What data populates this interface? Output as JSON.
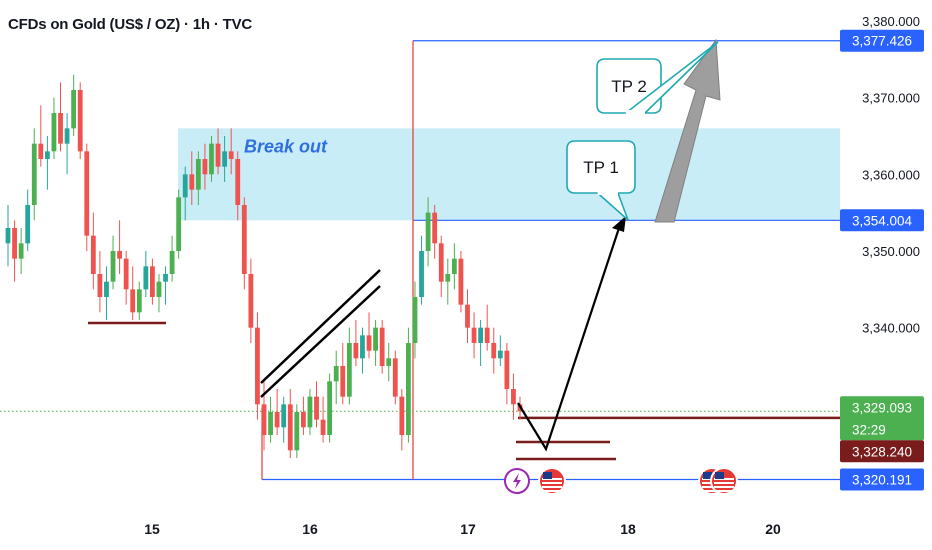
{
  "header": {
    "title": "CFDs on Gold (US$ / OZ) · 1h · TVC"
  },
  "chart_data": {
    "type": "candlestick",
    "ylim": [
      3318,
      3382
    ],
    "y_ticks": [
      "3,380.000",
      "3,370.000",
      "3,360.000",
      "3,350.000",
      "3,340.000"
    ],
    "x_ticks": [
      "15",
      "16",
      "17",
      "18",
      "20"
    ],
    "colors": {
      "up": "#26a69a",
      "up_alt": "#4caf50",
      "down": "#ef5350",
      "zone": "#bfeaf5",
      "line": "#2962ff"
    },
    "zone": {
      "label": "Break out",
      "low": 3354.0,
      "high": 3366.0
    },
    "price_tags": [
      {
        "value": 3377.426,
        "label": "3,377.426",
        "color": "#2962ff"
      },
      {
        "value": 3354.004,
        "label": "3,354.004",
        "color": "#2962ff"
      },
      {
        "value": 3329.093,
        "label": "3,329.093",
        "sub": "32:29",
        "color": "#4caf50"
      },
      {
        "value": 3328.24,
        "label": "3,328.240",
        "color": "#7b1c1c"
      },
      {
        "value": 3320.191,
        "label": "3,320.191",
        "color": "#2962ff"
      }
    ],
    "annotations": [
      "TP 1",
      "TP 2"
    ],
    "candles": [
      [
        3351,
        3356,
        3348,
        3353
      ],
      [
        3353,
        3354,
        3346,
        3349
      ],
      [
        3349,
        3353,
        3347,
        3351
      ],
      [
        3351,
        3358,
        3350,
        3356
      ],
      [
        3356,
        3366,
        3354,
        3364
      ],
      [
        3364,
        3369,
        3361,
        3362
      ],
      [
        3362,
        3365,
        3358,
        3363
      ],
      [
        3363,
        3370,
        3362,
        3368
      ],
      [
        3368,
        3372,
        3363,
        3364
      ],
      [
        3364,
        3368,
        3360,
        3366
      ],
      [
        3366,
        3373,
        3365,
        3371
      ],
      [
        3371,
        3372,
        3362,
        3363
      ],
      [
        3363,
        3364,
        3350,
        3352
      ],
      [
        3352,
        3355,
        3345,
        3347
      ],
      [
        3347,
        3350,
        3342,
        3344
      ],
      [
        3344,
        3348,
        3341,
        3346
      ],
      [
        3346,
        3352,
        3345,
        3350
      ],
      [
        3350,
        3354,
        3347,
        3349
      ],
      [
        3349,
        3350,
        3343,
        3345
      ],
      [
        3345,
        3348,
        3341,
        3342
      ],
      [
        3342,
        3346,
        3341,
        3345
      ],
      [
        3345,
        3350,
        3344,
        3348
      ],
      [
        3348,
        3349,
        3343,
        3344
      ],
      [
        3344,
        3347,
        3342,
        3346
      ],
      [
        3346,
        3348,
        3343,
        3347
      ],
      [
        3347,
        3352,
        3346,
        3350
      ],
      [
        3350,
        3358,
        3349,
        3357
      ],
      [
        3357,
        3361,
        3354,
        3360
      ],
      [
        3360,
        3363,
        3356,
        3358
      ],
      [
        3358,
        3363,
        3356,
        3362
      ],
      [
        3362,
        3364,
        3358,
        3360
      ],
      [
        3360,
        3365,
        3359,
        3364
      ],
      [
        3364,
        3366,
        3360,
        3361
      ],
      [
        3361,
        3365,
        3359,
        3363
      ],
      [
        3363,
        3366,
        3360,
        3362
      ],
      [
        3362,
        3363,
        3354,
        3356
      ],
      [
        3356,
        3357,
        3345,
        3347
      ],
      [
        3347,
        3349,
        3338,
        3340
      ],
      [
        3340,
        3342,
        3328,
        3330
      ],
      [
        3330,
        3333,
        3324,
        3326
      ],
      [
        3326,
        3331,
        3325,
        3329
      ],
      [
        3329,
        3332,
        3326,
        3327
      ],
      [
        3327,
        3331,
        3325,
        3330
      ],
      [
        3330,
        3332,
        3323,
        3324
      ],
      [
        3324,
        3330,
        3323,
        3329
      ],
      [
        3329,
        3331,
        3326,
        3327
      ],
      [
        3327,
        3332,
        3326,
        3331
      ],
      [
        3331,
        3333,
        3327,
        3328
      ],
      [
        3328,
        3331,
        3325,
        3326
      ],
      [
        3326,
        3334,
        3325,
        3333
      ],
      [
        3333,
        3337,
        3330,
        3335
      ],
      [
        3335,
        3338,
        3330,
        3331
      ],
      [
        3331,
        3340,
        3330,
        3338
      ],
      [
        3338,
        3341,
        3335,
        3336
      ],
      [
        3336,
        3340,
        3334,
        3339
      ],
      [
        3339,
        3342,
        3336,
        3337
      ],
      [
        3337,
        3341,
        3335,
        3340
      ],
      [
        3340,
        3341,
        3334,
        3335
      ],
      [
        3335,
        3338,
        3333,
        3336
      ],
      [
        3336,
        3337,
        3330,
        3331
      ],
      [
        3331,
        3332,
        3324,
        3326
      ],
      [
        3326,
        3340,
        3325,
        3338
      ],
      [
        3338,
        3346,
        3336,
        3344
      ],
      [
        3344,
        3352,
        3343,
        3350
      ],
      [
        3350,
        3357,
        3348,
        3355
      ],
      [
        3355,
        3356,
        3349,
        3351
      ],
      [
        3351,
        3352,
        3344,
        3346
      ],
      [
        3346,
        3349,
        3343,
        3347
      ],
      [
        3347,
        3351,
        3345,
        3349
      ],
      [
        3349,
        3350,
        3342,
        3343
      ],
      [
        3343,
        3345,
        3338,
        3340
      ],
      [
        3340,
        3342,
        3336,
        3338
      ],
      [
        3338,
        3341,
        3335,
        3340
      ],
      [
        3340,
        3343,
        3337,
        3338
      ],
      [
        3338,
        3340,
        3334,
        3336
      ],
      [
        3336,
        3339,
        3335,
        3337
      ],
      [
        3337,
        3338,
        3330,
        3332
      ],
      [
        3332,
        3334,
        3328,
        3330
      ],
      [
        3330,
        3331,
        3328,
        3329.1
      ]
    ]
  }
}
